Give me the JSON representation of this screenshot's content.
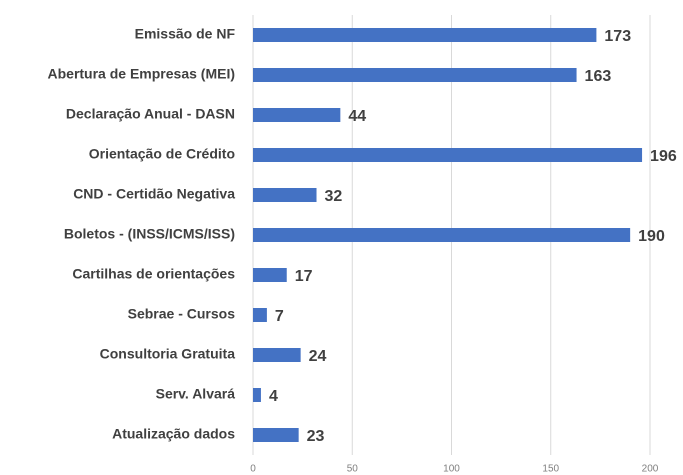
{
  "chart_data": {
    "type": "bar",
    "orientation": "horizontal",
    "categories": [
      "Emissão de NF",
      "Abertura de Empresas (MEI)",
      "Declaração Anual - DASN",
      "Orientação de Crédito",
      "CND - Certidão Negativa",
      "Boletos - (INSS/ICMS/ISS)",
      "Cartilhas de orientações",
      "Sebrae - Cursos",
      "Consultoria Gratuita",
      "Serv. Alvará",
      "Atualização dados"
    ],
    "values": [
      173,
      163,
      44,
      196,
      32,
      190,
      17,
      7,
      24,
      4,
      23
    ],
    "color": "#4472c4",
    "xlim": [
      0,
      200
    ],
    "xticks": [
      0,
      50,
      100,
      150,
      200
    ],
    "grid": true
  }
}
